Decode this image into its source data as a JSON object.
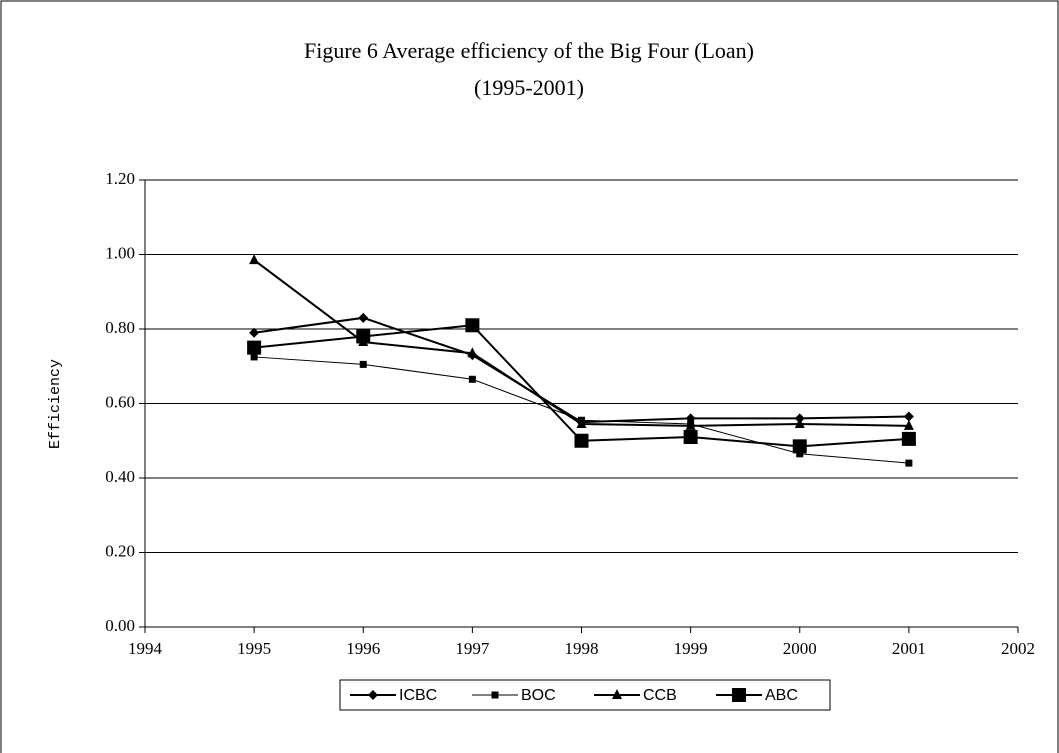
{
  "chart_data": {
    "type": "line",
    "title": "Figure 6  Average efficiency of the Big Four (Loan)",
    "subtitle": "(1995-2001)",
    "y_label": "Efficiency",
    "x": [
      1995,
      1996,
      1997,
      1998,
      1999,
      2000,
      2001
    ],
    "series": [
      {
        "name": "ICBC",
        "color": "#000000",
        "marker": "diamond",
        "values": [
          0.79,
          0.83,
          0.73,
          0.55,
          0.56,
          0.56,
          0.565
        ]
      },
      {
        "name": "BOC",
        "color": "#000000",
        "marker": "small-square",
        "values": [
          0.725,
          0.705,
          0.665,
          0.555,
          0.545,
          0.465,
          0.44
        ]
      },
      {
        "name": "CCB",
        "color": "#000000",
        "marker": "triangle",
        "values": [
          0.985,
          0.765,
          0.735,
          0.545,
          0.54,
          0.545,
          0.54
        ]
      },
      {
        "name": "ABC",
        "color": "#000000",
        "marker": "large-square",
        "values": [
          0.75,
          0.78,
          0.81,
          0.5,
          0.51,
          0.485,
          0.505
        ]
      }
    ],
    "xlim": [
      1994,
      2002
    ],
    "xticks": [
      1994,
      1995,
      1996,
      1997,
      1998,
      1999,
      2000,
      2001,
      2002
    ],
    "ylim": [
      0,
      1.2
    ],
    "yticks": [
      {
        "value": 0,
        "label": "0.00"
      },
      {
        "value": 0.2,
        "label": "0.20"
      },
      {
        "value": 0.4,
        "label": "0.40"
      },
      {
        "value": 0.6,
        "label": "0.60"
      },
      {
        "value": 0.8,
        "label": "0.80"
      },
      {
        "value": 1.0,
        "label": "1.00"
      },
      {
        "value": 1.2,
        "label": "1.20"
      }
    ],
    "grid": true,
    "legend": "bottom"
  }
}
